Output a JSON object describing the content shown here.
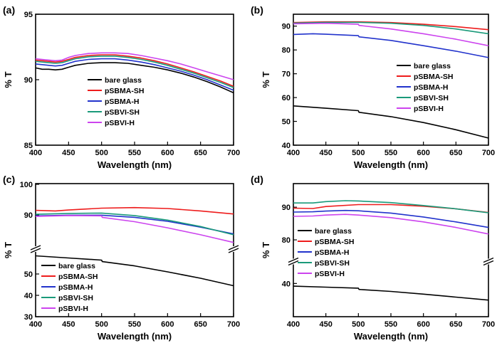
{
  "figure": {
    "panel_labels": [
      "(a)",
      "(b)",
      "(c)",
      "(d)"
    ]
  },
  "chart_data": [
    {
      "panel": "(a)",
      "type": "line",
      "xlabel": "Wavelength (nm)",
      "ylabel": "% T",
      "xlim": [
        400,
        700
      ],
      "ylim": [
        85,
        95
      ],
      "xticks": [
        "400",
        "450",
        "500",
        "550",
        "600",
        "650",
        "700"
      ],
      "yticks": [
        "85",
        "90",
        "95"
      ],
      "legend_position": "center-bottom",
      "series": [
        {
          "name": "bare glass",
          "color": "#000000",
          "x": [
            400,
            410,
            420,
            430,
            440,
            450,
            460,
            480,
            500,
            520,
            540,
            560,
            580,
            600,
            620,
            640,
            660,
            680,
            700
          ],
          "y": [
            90.9,
            90.8,
            90.8,
            90.75,
            90.8,
            90.95,
            91.1,
            91.25,
            91.3,
            91.3,
            91.25,
            91.1,
            90.95,
            90.75,
            90.5,
            90.2,
            89.85,
            89.45,
            89.0
          ]
        },
        {
          "name": "pSBMA-SH",
          "color": "#ee1c1c",
          "x": [
            400,
            410,
            420,
            430,
            440,
            450,
            460,
            480,
            500,
            520,
            540,
            560,
            580,
            600,
            620,
            640,
            660,
            680,
            700
          ],
          "y": [
            91.5,
            91.45,
            91.4,
            91.35,
            91.4,
            91.55,
            91.7,
            91.85,
            91.9,
            91.9,
            91.8,
            91.65,
            91.45,
            91.2,
            90.9,
            90.6,
            90.25,
            89.9,
            89.5
          ]
        },
        {
          "name": "pSBMA-H",
          "color": "#2233cc",
          "x": [
            400,
            410,
            420,
            430,
            440,
            450,
            460,
            480,
            500,
            520,
            540,
            560,
            580,
            600,
            620,
            640,
            660,
            680,
            700
          ],
          "y": [
            91.2,
            91.15,
            91.1,
            91.05,
            91.1,
            91.25,
            91.4,
            91.55,
            91.6,
            91.6,
            91.5,
            91.35,
            91.15,
            90.9,
            90.65,
            90.35,
            90.0,
            89.6,
            89.2
          ]
        },
        {
          "name": "pSBVI-SH",
          "color": "#1a9a7a",
          "x": [
            400,
            410,
            420,
            430,
            440,
            450,
            460,
            480,
            500,
            520,
            540,
            560,
            580,
            600,
            620,
            640,
            660,
            680,
            700
          ],
          "y": [
            91.4,
            91.35,
            91.3,
            91.25,
            91.3,
            91.45,
            91.6,
            91.75,
            91.8,
            91.8,
            91.7,
            91.55,
            91.35,
            91.1,
            90.8,
            90.5,
            90.15,
            89.8,
            89.4
          ]
        },
        {
          "name": "pSBVI-H",
          "color": "#cc44ee",
          "x": [
            400,
            410,
            420,
            430,
            440,
            450,
            460,
            480,
            500,
            520,
            540,
            560,
            580,
            600,
            620,
            640,
            660,
            680,
            700
          ],
          "y": [
            91.6,
            91.55,
            91.5,
            91.45,
            91.5,
            91.7,
            91.85,
            92.0,
            92.05,
            92.05,
            92.0,
            91.85,
            91.65,
            91.45,
            91.2,
            90.9,
            90.6,
            90.3,
            90.0
          ]
        }
      ]
    },
    {
      "panel": "(b)",
      "type": "line",
      "xlabel": "Wavelength (nm)",
      "ylabel": "% T",
      "xlim": [
        400,
        700
      ],
      "ylim": [
        40,
        95
      ],
      "xticks": [
        "400",
        "450",
        "500",
        "550",
        "600",
        "650",
        "700"
      ],
      "yticks": [
        "40",
        "50",
        "60",
        "70",
        "80",
        "90"
      ],
      "legend_position": "right-middle",
      "series": [
        {
          "name": "bare glass",
          "color": "#000000",
          "x": [
            400,
            450,
            500,
            501,
            550,
            600,
            650,
            700
          ],
          "y": [
            56.5,
            55.5,
            54.5,
            53.8,
            52.0,
            49.5,
            46.5,
            43.0
          ]
        },
        {
          "name": "pSBMA-SH",
          "color": "#ee1c1c",
          "x": [
            400,
            450,
            500,
            550,
            600,
            650,
            700
          ],
          "y": [
            91.5,
            91.8,
            91.8,
            91.5,
            90.8,
            89.8,
            88.5
          ]
        },
        {
          "name": "pSBMA-H",
          "color": "#2233cc",
          "x": [
            400,
            430,
            450,
            500,
            501,
            550,
            600,
            650,
            700
          ],
          "y": [
            86.5,
            86.8,
            86.6,
            86.0,
            85.5,
            84.0,
            81.8,
            79.5,
            76.8
          ]
        },
        {
          "name": "pSBVI-SH",
          "color": "#1a9a7a",
          "x": [
            400,
            450,
            500,
            550,
            600,
            650,
            700
          ],
          "y": [
            91.3,
            91.6,
            91.6,
            91.2,
            90.3,
            88.8,
            86.8
          ]
        },
        {
          "name": "pSBVI-H",
          "color": "#cc44ee",
          "x": [
            400,
            450,
            500,
            501,
            550,
            600,
            650,
            700
          ],
          "y": [
            91.0,
            91.2,
            90.8,
            90.3,
            88.8,
            86.8,
            84.5,
            81.8
          ]
        }
      ]
    },
    {
      "panel": "(c)",
      "type": "line",
      "xlabel": "Wavelength (nm)",
      "ylabel": "% T",
      "xlim": [
        400,
        700
      ],
      "ylim": [
        30,
        100
      ],
      "axis_break": [
        60,
        80
      ],
      "xticks": [
        "400",
        "450",
        "500",
        "550",
        "600",
        "650",
        "700"
      ],
      "yticks": [
        "30",
        "40",
        "50",
        "90",
        "100"
      ],
      "legend_position": "left-bottom",
      "series": [
        {
          "name": "bare glass",
          "color": "#000000",
          "x": [
            400,
            450,
            500,
            501,
            550,
            600,
            650,
            700
          ],
          "y": [
            58.5,
            57.5,
            56.5,
            55.8,
            53.8,
            51.0,
            48.0,
            44.5
          ]
        },
        {
          "name": "pSBMA-SH",
          "color": "#ee1c1c",
          "x": [
            400,
            430,
            450,
            500,
            550,
            600,
            650,
            700
          ],
          "y": [
            91.5,
            91.3,
            91.6,
            92.2,
            92.4,
            92.1,
            91.3,
            90.3
          ]
        },
        {
          "name": "pSBMA-H",
          "color": "#2233cc",
          "x": [
            400,
            450,
            500,
            550,
            600,
            650,
            700
          ],
          "y": [
            89.7,
            89.9,
            89.9,
            89.2,
            87.9,
            86.0,
            83.8
          ]
        },
        {
          "name": "pSBVI-SH",
          "color": "#1a9a7a",
          "x": [
            400,
            450,
            500,
            550,
            600,
            650,
            700
          ],
          "y": [
            90.2,
            90.5,
            90.6,
            89.8,
            88.3,
            86.2,
            83.5
          ]
        },
        {
          "name": "pSBVI-H",
          "color": "#cc44ee",
          "x": [
            400,
            450,
            500,
            501,
            550,
            600,
            650,
            700
          ],
          "y": [
            89.5,
            89.8,
            89.7,
            89.2,
            87.8,
            85.8,
            83.5,
            81.0
          ]
        }
      ]
    },
    {
      "panel": "(d)",
      "type": "line",
      "xlabel": "Wavelength (nm)",
      "ylabel": "% T",
      "xlim": [
        400,
        700
      ],
      "ylim": [
        30,
        97
      ],
      "axis_break": [
        45,
        75
      ],
      "xticks": [
        "400",
        "450",
        "500",
        "550",
        "600",
        "650",
        "700"
      ],
      "yticks": [
        "40",
        "80",
        "90"
      ],
      "legend_position": "left-bottom",
      "series": [
        {
          "name": "bare glass",
          "color": "#000000",
          "x": [
            400,
            450,
            500,
            501,
            550,
            600,
            650,
            700
          ],
          "y": [
            39.2,
            38.9,
            38.6,
            38.2,
            37.6,
            36.8,
            35.9,
            35.0
          ]
        },
        {
          "name": "pSBMA-SH",
          "color": "#ee1c1c",
          "x": [
            400,
            430,
            450,
            500,
            550,
            600,
            650,
            700
          ],
          "y": [
            89.7,
            89.6,
            90.2,
            90.8,
            90.8,
            90.3,
            89.5,
            88.4
          ]
        },
        {
          "name": "pSBMA-H",
          "color": "#2233cc",
          "x": [
            400,
            430,
            450,
            480,
            500,
            550,
            600,
            650,
            700
          ],
          "y": [
            88.5,
            88.6,
            88.8,
            89.0,
            88.9,
            88.2,
            87.0,
            85.5,
            83.8
          ]
        },
        {
          "name": "pSBVI-SH",
          "color": "#1a9a7a",
          "x": [
            400,
            430,
            450,
            480,
            500,
            550,
            600,
            650,
            700
          ],
          "y": [
            91.3,
            91.3,
            91.7,
            92.0,
            91.9,
            91.4,
            90.5,
            89.5,
            88.3
          ]
        },
        {
          "name": "pSBVI-H",
          "color": "#cc44ee",
          "x": [
            400,
            430,
            450,
            480,
            500,
            550,
            600,
            650,
            700
          ],
          "y": [
            87.2,
            87.3,
            87.6,
            87.8,
            87.6,
            86.8,
            85.5,
            83.8,
            81.8
          ]
        }
      ]
    }
  ]
}
